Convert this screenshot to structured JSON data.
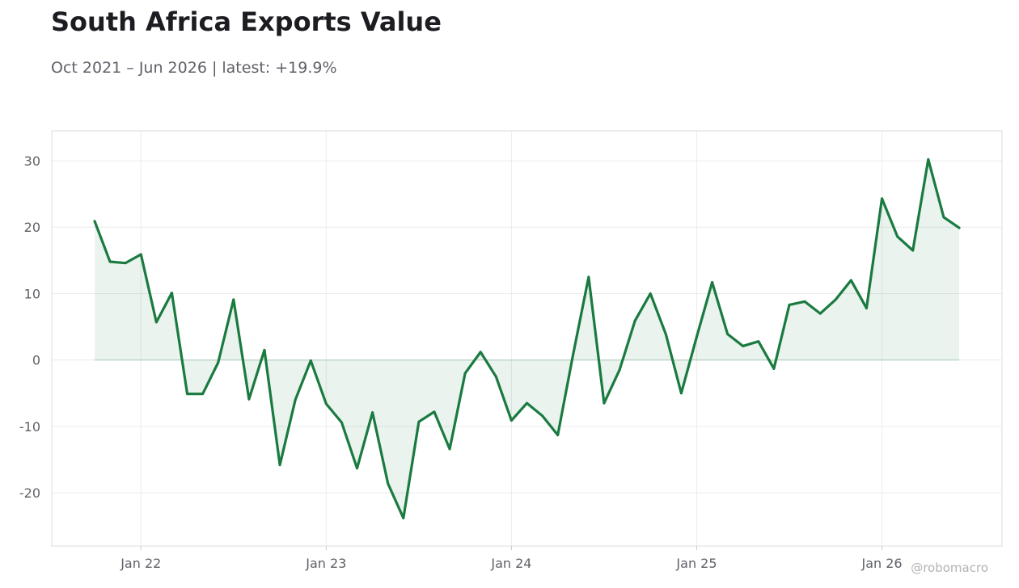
{
  "title": "South Africa Exports Value",
  "subtitle": "Oct 2021 – Jun 2026 | latest: +19.9%",
  "watermark": "@robomacro",
  "colors": {
    "line": "#1a7a40",
    "fill": "#1a7a40",
    "grid": "#ececec",
    "frame": "#dddddd",
    "text": "#5f6168"
  },
  "chart_data": {
    "type": "area",
    "x_start": "2021-10",
    "x_end": "2026-06",
    "x_ticks": [
      {
        "label": "Jan 22",
        "date": "2022-01"
      },
      {
        "label": "Jan 23",
        "date": "2023-01"
      },
      {
        "label": "Jan 24",
        "date": "2024-01"
      },
      {
        "label": "Jan 25",
        "date": "2025-01"
      },
      {
        "label": "Jan 26",
        "date": "2026-01"
      }
    ],
    "y_ticks": [
      30,
      20,
      10,
      0,
      -10,
      -20
    ],
    "ylim": [
      -28,
      34.5
    ],
    "grid": true,
    "series": [
      {
        "values": [
          {
            "x": "2021-10",
            "y": 20.9
          },
          {
            "x": "2021-11",
            "y": 14.8
          },
          {
            "x": "2021-12",
            "y": 14.6
          },
          {
            "x": "2022-01",
            "y": 15.9
          },
          {
            "x": "2022-02",
            "y": 5.7
          },
          {
            "x": "2022-03",
            "y": 10.1
          },
          {
            "x": "2022-04",
            "y": -5.1
          },
          {
            "x": "2022-05",
            "y": -5.1
          },
          {
            "x": "2022-06",
            "y": -0.4
          },
          {
            "x": "2022-07",
            "y": 9.1
          },
          {
            "x": "2022-08",
            "y": -5.9
          },
          {
            "x": "2022-09",
            "y": 1.5
          },
          {
            "x": "2022-10",
            "y": -15.8
          },
          {
            "x": "2022-11",
            "y": -6.0
          },
          {
            "x": "2022-12",
            "y": -0.1
          },
          {
            "x": "2023-01",
            "y": -6.6
          },
          {
            "x": "2023-02",
            "y": -9.4
          },
          {
            "x": "2023-03",
            "y": -16.3
          },
          {
            "x": "2023-04",
            "y": -7.9
          },
          {
            "x": "2023-05",
            "y": -18.6
          },
          {
            "x": "2023-06",
            "y": -23.8
          },
          {
            "x": "2023-07",
            "y": -9.3
          },
          {
            "x": "2023-08",
            "y": -7.8
          },
          {
            "x": "2023-09",
            "y": -13.4
          },
          {
            "x": "2023-10",
            "y": -2.0
          },
          {
            "x": "2023-11",
            "y": 1.2
          },
          {
            "x": "2023-12",
            "y": -2.5
          },
          {
            "x": "2024-01",
            "y": -9.1
          },
          {
            "x": "2024-02",
            "y": -6.5
          },
          {
            "x": "2024-03",
            "y": -8.4
          },
          {
            "x": "2024-04",
            "y": -11.3
          },
          {
            "x": "2024-05",
            "y": 0.9
          },
          {
            "x": "2024-06",
            "y": 12.5
          },
          {
            "x": "2024-07",
            "y": -6.5
          },
          {
            "x": "2024-08",
            "y": -1.5
          },
          {
            "x": "2024-09",
            "y": 5.9
          },
          {
            "x": "2024-10",
            "y": 10.0
          },
          {
            "x": "2024-11",
            "y": 3.9
          },
          {
            "x": "2024-12",
            "y": -5.0
          },
          {
            "x": "2025-01",
            "y": 3.5
          },
          {
            "x": "2025-02",
            "y": 11.7
          },
          {
            "x": "2025-03",
            "y": 3.9
          },
          {
            "x": "2025-04",
            "y": 2.1
          },
          {
            "x": "2025-05",
            "y": 2.8
          },
          {
            "x": "2025-06",
            "y": -1.3
          },
          {
            "x": "2025-07",
            "y": 8.3
          },
          {
            "x": "2025-08",
            "y": 8.8
          },
          {
            "x": "2025-09",
            "y": 7.0
          },
          {
            "x": "2025-10",
            "y": 9.1
          },
          {
            "x": "2025-11",
            "y": 12.0
          },
          {
            "x": "2025-12",
            "y": 7.8
          },
          {
            "x": "2026-01",
            "y": 24.3
          },
          {
            "x": "2026-02",
            "y": 18.6
          },
          {
            "x": "2026-03",
            "y": 16.5
          },
          {
            "x": "2026-04",
            "y": 30.2
          },
          {
            "x": "2026-05",
            "y": 21.5
          },
          {
            "x": "2026-06",
            "y": 19.9
          }
        ]
      }
    ]
  }
}
